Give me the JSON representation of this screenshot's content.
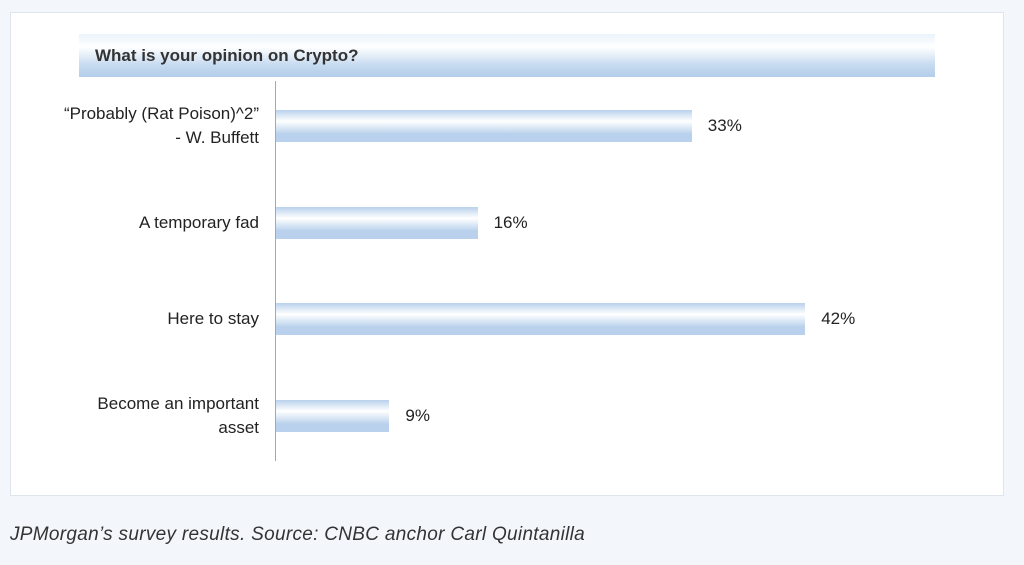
{
  "chart_data": {
    "type": "barh",
    "title": "What is your opinion on Crypto?",
    "categories": [
      "“Probably (Rat Poison)^2” - W. Buffett",
      "A temporary fad",
      "Here to stay",
      "Become an important asset"
    ],
    "values": [
      33,
      16,
      42,
      9
    ],
    "value_labels": [
      "33%",
      "16%",
      "42%",
      "9%"
    ],
    "color": "#b9d1ec"
  },
  "caption": "JPMorgan’s survey results. Source: CNBC anchor Carl Quintanilla"
}
